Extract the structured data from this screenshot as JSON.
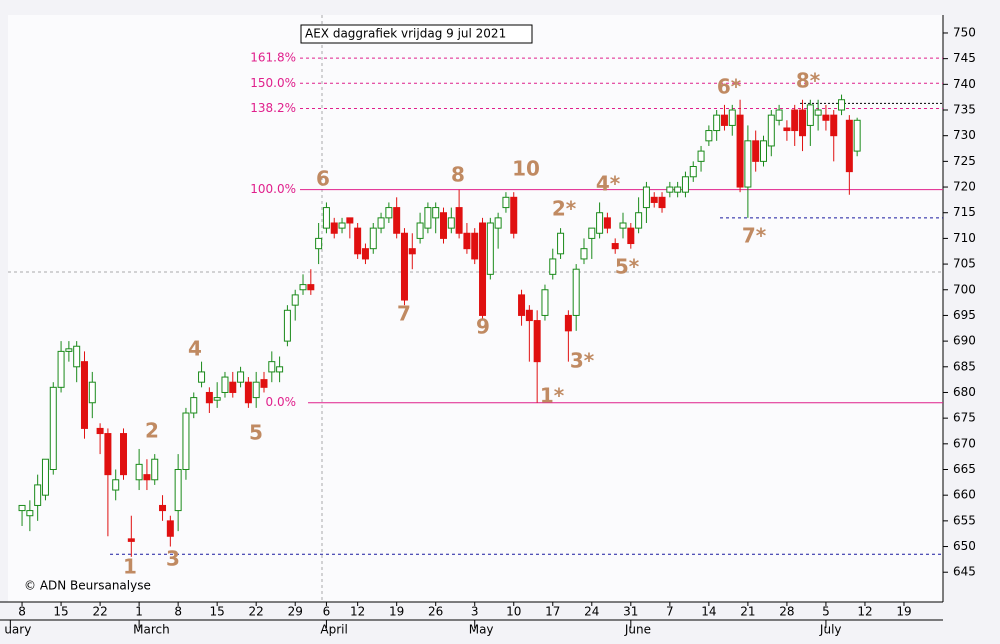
{
  "chart_data": {
    "type": "candlestick",
    "title": "AEX daggrafiek vrijdag 9 jul 2021",
    "copyright": "© ADN Beursanalyse",
    "up_color": "#1a8a1a",
    "down_color": "#e01010",
    "x": [
      0,
      1,
      2,
      3,
      4,
      5,
      6,
      7,
      8,
      9,
      10,
      11,
      12,
      13,
      14,
      15,
      16,
      17,
      18,
      19,
      20,
      21,
      22,
      23,
      24,
      25,
      26,
      27,
      28,
      29,
      30,
      31,
      32,
      33,
      34,
      35,
      36,
      37,
      38,
      39,
      40,
      41,
      42,
      43,
      44,
      45,
      46,
      47,
      48,
      49,
      50,
      51,
      52,
      53,
      54,
      55,
      56,
      57,
      58,
      59,
      60,
      61,
      62,
      63,
      64,
      65,
      66,
      67,
      68,
      69,
      70,
      71,
      72,
      73,
      74,
      75,
      76,
      77,
      78,
      79,
      80,
      81,
      82,
      83,
      84,
      85,
      86,
      87,
      88,
      89,
      90,
      91,
      92,
      93,
      94,
      95,
      96,
      97,
      98,
      99,
      100,
      101,
      102,
      103,
      104,
      105,
      106,
      107
    ],
    "open": [
      657,
      656,
      658,
      660,
      665,
      681,
      688,
      685,
      686,
      678,
      673,
      672,
      661,
      672,
      651.5,
      663,
      664,
      663,
      658,
      655,
      657,
      665,
      676,
      682,
      680,
      678.5,
      680,
      682,
      682,
      682,
      679,
      682.5,
      684,
      684,
      690,
      697,
      700,
      701,
      708,
      712,
      713,
      712,
      714,
      712,
      708,
      708,
      712,
      714,
      716,
      711,
      708,
      710,
      712,
      714,
      715,
      712,
      716,
      711,
      711,
      713,
      703,
      712,
      716,
      718,
      699,
      696,
      694,
      695,
      703,
      707,
      695,
      695,
      706,
      710,
      711,
      714,
      709,
      712,
      712,
      712,
      716,
      718,
      718,
      719,
      719,
      719,
      722,
      725,
      729,
      731,
      734,
      732,
      734,
      720,
      729,
      725,
      728,
      733,
      731.5,
      735,
      735,
      732,
      734,
      734,
      734,
      735,
      733,
      727
    ],
    "high": [
      658,
      659,
      664,
      667,
      682,
      690,
      690,
      690,
      688,
      684,
      674,
      673,
      665,
      673,
      656,
      669,
      667,
      668,
      660,
      656,
      668,
      677,
      680,
      686,
      681,
      682,
      684,
      684,
      685,
      683,
      684,
      684,
      688,
      687,
      697,
      700,
      703,
      704,
      713,
      717,
      714,
      714,
      714,
      713,
      709,
      713,
      715,
      717,
      718,
      712,
      711,
      715,
      717,
      717,
      716,
      716,
      719.5,
      713,
      712,
      714,
      714,
      715,
      719,
      719,
      700,
      697,
      696,
      701,
      708,
      712,
      696,
      705,
      710,
      712,
      717,
      715,
      710,
      715,
      713,
      718,
      721,
      719,
      719,
      721,
      721,
      723,
      725,
      728,
      732,
      735,
      736,
      736,
      737,
      732,
      731,
      730,
      735,
      736,
      733,
      736,
      737,
      737,
      737,
      736,
      735,
      738,
      734,
      733.5
    ],
    "low": [
      654,
      653,
      655,
      659,
      664,
      680,
      686,
      682,
      671,
      675,
      668,
      652,
      659,
      663,
      648,
      661,
      661,
      662,
      655,
      650,
      653,
      663,
      675,
      681,
      676,
      677,
      679,
      679,
      681,
      677,
      677,
      680,
      682,
      682,
      689,
      694,
      699,
      699,
      705,
      711,
      710,
      711,
      710,
      706,
      705,
      707,
      711,
      713,
      710,
      697,
      704,
      709,
      711,
      711,
      709,
      711,
      710,
      707,
      705,
      694,
      702,
      708,
      715,
      710,
      693,
      686,
      678,
      694,
      702,
      706,
      686,
      692,
      705,
      706,
      710,
      711,
      707,
      710,
      708,
      711,
      713,
      716,
      715,
      718,
      718,
      718,
      721,
      723,
      728,
      729,
      731,
      730,
      719,
      714,
      723,
      724,
      726,
      732,
      729,
      728,
      727,
      728,
      731,
      731,
      725,
      734,
      718.5,
      726
    ],
    "close": [
      658,
      657,
      662,
      667,
      681,
      688,
      688.5,
      689,
      673,
      682,
      672,
      664,
      663,
      664,
      651,
      666,
      663,
      667,
      657,
      652,
      665,
      676,
      679,
      684,
      678,
      679,
      683,
      680,
      684,
      678,
      682,
      681,
      686,
      685,
      696,
      699,
      701,
      700,
      710,
      716,
      711,
      713,
      713,
      707,
      706,
      712,
      714,
      716,
      711,
      698,
      707,
      713,
      716,
      716,
      710,
      714,
      711,
      708,
      706,
      695,
      713,
      714,
      718,
      711,
      695,
      694,
      686,
      700,
      706,
      711,
      692,
      704,
      708,
      712,
      715,
      712,
      708,
      713,
      709,
      715,
      720,
      717,
      716,
      720,
      720,
      722,
      724,
      727,
      731,
      734,
      732,
      735,
      720,
      729,
      725,
      729,
      734,
      735,
      731,
      731,
      730,
      736,
      735,
      733,
      730,
      737,
      723,
      733
    ],
    "xlim": [
      -1.8,
      118
    ],
    "ylim": [
      639.2,
      753.5
    ],
    "yticks": [
      645,
      650,
      655,
      660,
      665,
      670,
      675,
      680,
      685,
      690,
      695,
      700,
      705,
      710,
      715,
      720,
      725,
      730,
      735,
      740,
      745,
      750
    ],
    "xticks": [
      {
        "value": 0,
        "label": "8"
      },
      {
        "value": 5,
        "label": "15"
      },
      {
        "value": 10,
        "label": "22"
      },
      {
        "value": 15,
        "label": "1"
      },
      {
        "value": 20,
        "label": "8"
      },
      {
        "value": 25,
        "label": "15"
      },
      {
        "value": 30,
        "label": "22"
      },
      {
        "value": 35,
        "label": "29"
      },
      {
        "value": 39,
        "label": "6"
      },
      {
        "value": 43,
        "label": "12"
      },
      {
        "value": 48,
        "label": "19"
      },
      {
        "value": 53,
        "label": "26"
      },
      {
        "value": 58,
        "label": "3"
      },
      {
        "value": 63,
        "label": "10"
      },
      {
        "value": 68,
        "label": "17"
      },
      {
        "value": 73,
        "label": "24"
      },
      {
        "value": 78,
        "label": "31"
      },
      {
        "value": 83,
        "label": "7"
      },
      {
        "value": 88,
        "label": "14"
      },
      {
        "value": 93,
        "label": "21"
      },
      {
        "value": 98,
        "label": "28"
      },
      {
        "value": 103,
        "label": "5"
      },
      {
        "value": 108,
        "label": "12"
      },
      {
        "value": 113,
        "label": "19"
      }
    ],
    "months": [
      {
        "value": -1.5,
        "label": "uary"
      },
      {
        "value": 15,
        "label": "March"
      },
      {
        "value": 39,
        "label": "April"
      },
      {
        "value": 58,
        "label": "May"
      },
      {
        "value": 78,
        "label": "June"
      },
      {
        "value": 103,
        "label": "July"
      }
    ],
    "fib_levels": [
      {
        "value": 678,
        "label": "0.0%"
      },
      {
        "value": 719.5,
        "label": "100.0%"
      },
      {
        "value": 735.3,
        "label": "138.2%"
      },
      {
        "value": 740.2,
        "label": "150.0%"
      },
      {
        "value": 745.1,
        "label": "161.8%"
      }
    ],
    "fib_color": "#e0208c",
    "support_lines": [
      648.5,
      714,
      736.3
    ],
    "annotations": [
      "1",
      "2",
      "3",
      "4",
      "5",
      "6",
      "7",
      "8",
      "9",
      "10",
      "1*",
      "2*",
      "3*",
      "4*",
      "5*",
      "6*",
      "7*",
      "8*"
    ],
    "annotation_color": "#c08a62"
  }
}
